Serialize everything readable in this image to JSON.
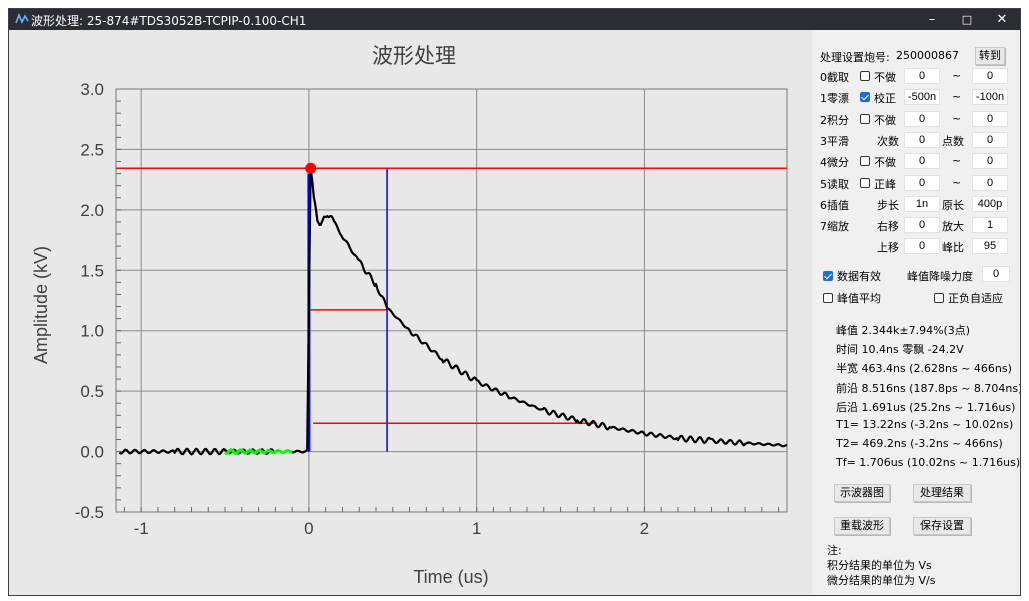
{
  "window": {
    "title": "波形处理:  25-874#TDS3052B-TCPIP-0.100-CH1",
    "controls": {
      "minimize": "–",
      "maximize": "□",
      "close": "✕"
    }
  },
  "chart_data": {
    "type": "line",
    "title": "波形处理",
    "xlabel": "Time (us)",
    "ylabel": "Amplitude (kV)",
    "xlim": [
      -1.15,
      2.85
    ],
    "ylim": [
      -0.5,
      3.0
    ],
    "xticks": [
      "-1",
      "0",
      "1",
      "2"
    ],
    "xtick_values": [
      -1,
      0,
      1,
      2
    ],
    "yticks": [
      "3.0",
      "2.5",
      "2.0",
      "1.5",
      "1.0",
      "0.5",
      "0.0",
      "-0.5"
    ],
    "ytick_values": [
      3.0,
      2.5,
      2.0,
      1.5,
      1.0,
      0.5,
      0.0,
      -0.5
    ],
    "grid": true,
    "series": [
      {
        "color": "#000000",
        "x": [
          -1.13,
          -0.8,
          -0.5,
          -0.2,
          -0.01,
          0.0,
          0.01,
          0.02,
          0.03,
          0.05,
          0.07,
          0.09,
          0.11,
          0.15,
          0.2,
          0.3,
          0.4,
          0.466,
          0.6,
          0.8,
          1.0,
          1.2,
          1.4,
          1.6,
          1.8,
          2.0,
          2.2,
          2.4,
          2.6,
          2.85
        ],
        "y": [
          0.0,
          0.0,
          0.0,
          0.0,
          0.0,
          1.2,
          2.34,
          2.25,
          2.1,
          1.9,
          1.88,
          1.93,
          1.97,
          1.9,
          1.78,
          1.57,
          1.38,
          1.19,
          1.0,
          0.76,
          0.58,
          0.45,
          0.34,
          0.26,
          0.2,
          0.15,
          0.11,
          0.09,
          0.07,
          0.05
        ]
      },
      {
        "color": "#00ff00",
        "x": [
          -0.5,
          -0.1
        ],
        "y": [
          0.0,
          0.0
        ]
      }
    ],
    "peak_marker": {
      "x": 0.0104,
      "y": 2.344,
      "color": "#ff0000"
    },
    "markers": {
      "hlines": [
        {
          "y": 2.344,
          "x_from": -1.15,
          "x_to": 2.85,
          "color": "#ff0000"
        },
        {
          "y": 1.172,
          "x_from": 0.0026,
          "x_to": 0.466,
          "color": "#ff0000"
        },
        {
          "y": 0.234,
          "x_from": 0.0252,
          "x_to": 1.716,
          "color": "#ff0000"
        }
      ],
      "vlines": [
        {
          "x": 0.0,
          "y_from": 0.0,
          "y_to": 2.3,
          "color": "#0000ff"
        },
        {
          "x": 0.466,
          "y_from": 0.0,
          "y_to": 2.344,
          "color": "#0000ff"
        }
      ]
    }
  },
  "panel": {
    "setting_label": "处理设置炮号:",
    "setting_value": "250000867",
    "goto_label": "转到",
    "rows": [
      {
        "label": "0截取",
        "checked": false,
        "opt": "不做",
        "v1": "0",
        "sep": "~",
        "v2": "0"
      },
      {
        "label": "1零漂",
        "checked": true,
        "opt": "校正",
        "v1": "-500n",
        "sep": "~",
        "v2": "-100n"
      },
      {
        "label": "2积分",
        "checked": false,
        "opt": "不做",
        "v1": "0",
        "sep": "~",
        "v2": "0"
      },
      {
        "label": "3平滑",
        "opt": "次数",
        "v1": "0",
        "sep": "点数",
        "v2": "0"
      },
      {
        "label": "4微分",
        "checked": false,
        "opt": "不做",
        "v1": "0",
        "sep": "~",
        "v2": "0"
      },
      {
        "label": "5读取",
        "checked": false,
        "opt": "正峰",
        "v1": "0",
        "sep": "~",
        "v2": "0"
      },
      {
        "label": "6插值",
        "opt": "步长",
        "v1": "1n",
        "sep": "原长",
        "v2": "400p"
      },
      {
        "label": "7缩放",
        "opt": "右移",
        "v1": "0",
        "sep": "放大",
        "v2": "1"
      },
      {
        "label": "",
        "opt": "上移",
        "v1": "0",
        "sep": "峰比",
        "v2": "95"
      }
    ],
    "data_valid": {
      "label": "数据有效",
      "checked": true
    },
    "noise_label": "峰值降噪力度",
    "noise_value": "0",
    "peak_avg": {
      "label": "峰值平均",
      "checked": false
    },
    "pos_neg": {
      "label": "正负自适应",
      "checked": false
    },
    "results": [
      "峰值 2.344k±7.94%(3点)",
      "时间 10.4ns  零飘 -24.2V",
      "半宽 463.4ns (2.628ns ~ 466ns)",
      "前沿 8.516ns (187.8ps ~ 8.704ns)",
      "后沿 1.691us (25.2ns ~ 1.716us)",
      "T1=  13.22ns (-3.2ns ~ 10.02ns)",
      "T2=  469.2ns (-3.2ns ~ 466ns)",
      "Tf=  1.706us (10.02ns ~ 1.716us)"
    ],
    "buttons": {
      "oscilloscope": "示波器图",
      "result": "处理结果",
      "reload": "重载波形",
      "save": "保存设置"
    },
    "notes": [
      "注:",
      "积分结果的单位为 Vs",
      "微分结果的单位为 V/s"
    ]
  }
}
